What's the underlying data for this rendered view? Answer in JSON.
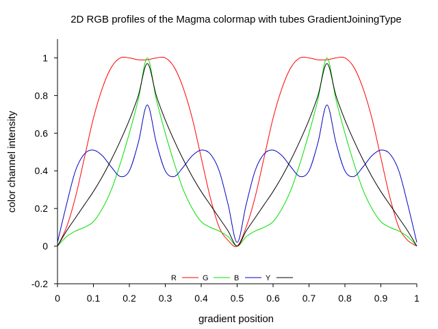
{
  "chart_data": {
    "type": "line",
    "title": "2D RGB profiles of the Magma colormap with tubes GradientJoiningType",
    "xlabel": "gradient position",
    "ylabel": "color channel intensity",
    "xlim": [
      0,
      1
    ],
    "ylim": [
      -0.2,
      1.1
    ],
    "xticks": [
      0,
      0.1,
      0.2,
      0.3,
      0.4,
      0.5,
      0.6,
      0.7,
      0.8,
      0.9,
      1
    ],
    "xtick_labels": [
      "0",
      "0.1",
      "0.2",
      "0.3",
      "0.4",
      "0.5",
      "0.6",
      "0.7",
      "0.8",
      "0.9",
      "1"
    ],
    "yticks": [
      -0.2,
      0,
      0.2,
      0.4,
      0.6,
      0.8,
      1
    ],
    "ytick_labels": [
      "-0.2",
      "0",
      "0.2",
      "0.4",
      "0.6",
      "0.8",
      "1"
    ],
    "grid": false,
    "legend_position": "bottom-center",
    "series": [
      {
        "name": "R",
        "color": "#ff0000",
        "x": [
          0,
          0.025,
          0.05,
          0.075,
          0.1,
          0.125,
          0.15,
          0.175,
          0.2,
          0.225,
          0.25,
          0.275,
          0.3,
          0.325,
          0.35,
          0.375,
          0.4,
          0.425,
          0.45,
          0.475,
          0.5,
          0.525,
          0.55,
          0.575,
          0.6,
          0.625,
          0.65,
          0.675,
          0.7,
          0.725,
          0.75,
          0.775,
          0.8,
          0.825,
          0.85,
          0.875,
          0.9,
          0.925,
          0.95,
          0.975,
          1
        ],
        "y": [
          0,
          0.1,
          0.26,
          0.47,
          0.68,
          0.84,
          0.95,
          1.0,
          1.0,
          0.99,
          0.99,
          1.0,
          1.0,
          0.95,
          0.84,
          0.68,
          0.47,
          0.26,
          0.1,
          0.03,
          0,
          0.1,
          0.26,
          0.47,
          0.68,
          0.84,
          0.95,
          1.0,
          1.0,
          0.99,
          0.99,
          1.0,
          1.0,
          0.95,
          0.84,
          0.68,
          0.47,
          0.26,
          0.1,
          0.03,
          0
        ]
      },
      {
        "name": "G",
        "color": "#00e000",
        "x": [
          0,
          0.025,
          0.05,
          0.075,
          0.1,
          0.125,
          0.15,
          0.175,
          0.2,
          0.225,
          0.25,
          0.275,
          0.3,
          0.325,
          0.35,
          0.375,
          0.4,
          0.425,
          0.45,
          0.475,
          0.5,
          0.525,
          0.55,
          0.575,
          0.6,
          0.625,
          0.65,
          0.675,
          0.7,
          0.725,
          0.75,
          0.775,
          0.8,
          0.825,
          0.85,
          0.875,
          0.9,
          0.925,
          0.95,
          0.975,
          1
        ],
        "y": [
          0,
          0.05,
          0.08,
          0.1,
          0.13,
          0.2,
          0.3,
          0.44,
          0.6,
          0.78,
          1.0,
          0.78,
          0.6,
          0.44,
          0.3,
          0.2,
          0.13,
          0.1,
          0.08,
          0.05,
          0,
          0.05,
          0.08,
          0.1,
          0.13,
          0.2,
          0.3,
          0.44,
          0.6,
          0.78,
          1.0,
          0.78,
          0.6,
          0.44,
          0.3,
          0.2,
          0.13,
          0.1,
          0.08,
          0.05,
          0
        ]
      },
      {
        "name": "B",
        "color": "#0000c0",
        "x": [
          0,
          0.025,
          0.05,
          0.075,
          0.1,
          0.125,
          0.15,
          0.175,
          0.2,
          0.225,
          0.25,
          0.275,
          0.3,
          0.325,
          0.35,
          0.375,
          0.4,
          0.425,
          0.45,
          0.475,
          0.5,
          0.525,
          0.55,
          0.575,
          0.6,
          0.625,
          0.65,
          0.675,
          0.7,
          0.725,
          0.75,
          0.775,
          0.8,
          0.825,
          0.85,
          0.875,
          0.9,
          0.925,
          0.95,
          0.975,
          1
        ],
        "y": [
          0.02,
          0.22,
          0.4,
          0.49,
          0.51,
          0.48,
          0.42,
          0.37,
          0.4,
          0.55,
          0.75,
          0.55,
          0.4,
          0.37,
          0.42,
          0.48,
          0.51,
          0.49,
          0.4,
          0.22,
          0.02,
          0.22,
          0.4,
          0.49,
          0.51,
          0.48,
          0.42,
          0.37,
          0.4,
          0.55,
          0.75,
          0.55,
          0.4,
          0.37,
          0.42,
          0.48,
          0.51,
          0.49,
          0.4,
          0.22,
          0.02
        ]
      },
      {
        "name": "Y",
        "color": "#000000",
        "x": [
          0,
          0.025,
          0.05,
          0.075,
          0.1,
          0.125,
          0.15,
          0.175,
          0.2,
          0.225,
          0.25,
          0.275,
          0.3,
          0.325,
          0.35,
          0.375,
          0.4,
          0.425,
          0.45,
          0.475,
          0.5,
          0.525,
          0.55,
          0.575,
          0.6,
          0.625,
          0.65,
          0.675,
          0.7,
          0.725,
          0.75,
          0.775,
          0.8,
          0.825,
          0.85,
          0.875,
          0.9,
          0.925,
          0.95,
          0.975,
          1
        ],
        "y": [
          0,
          0.08,
          0.15,
          0.22,
          0.29,
          0.37,
          0.46,
          0.56,
          0.67,
          0.8,
          0.97,
          0.8,
          0.67,
          0.56,
          0.46,
          0.37,
          0.29,
          0.22,
          0.15,
          0.08,
          0,
          0.08,
          0.15,
          0.22,
          0.29,
          0.37,
          0.46,
          0.56,
          0.67,
          0.8,
          0.97,
          0.8,
          0.67,
          0.56,
          0.46,
          0.37,
          0.29,
          0.22,
          0.15,
          0.08,
          0
        ]
      }
    ]
  }
}
